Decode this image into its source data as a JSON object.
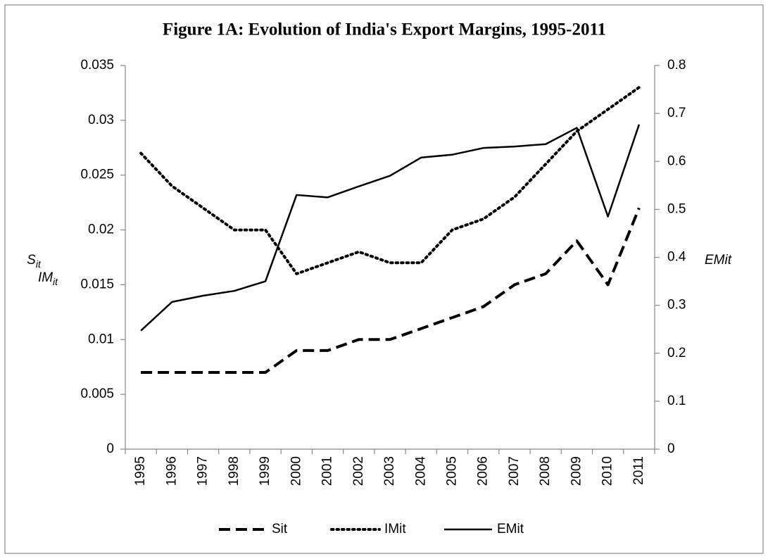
{
  "chart_data": {
    "type": "line",
    "title": "Figure 1A: Evolution of India's Export Margins, 1995-2011",
    "ylabel": [
      {
        "text": "S",
        "sub": "it"
      },
      {
        "text": "IM",
        "sub": "it"
      }
    ],
    "y2label": "EMit",
    "categories": [
      "1995",
      "1996",
      "1997",
      "1998",
      "1999",
      "2000",
      "2001",
      "2002",
      "2003",
      "2004",
      "2005",
      "2006",
      "2007",
      "2008",
      "2009",
      "2010",
      "2011"
    ],
    "series": [
      {
        "name": "Sit",
        "color": "#000000",
        "dash": "dashed",
        "values": [
          0.007,
          0.007,
          0.007,
          0.007,
          0.007,
          0.009,
          0.009,
          0.01,
          0.01,
          0.011,
          0.012,
          0.013,
          0.015,
          0.016,
          0.019,
          0.015,
          0.022
        ]
      },
      {
        "name": "IMit",
        "color": "#000000",
        "dash": "dotted",
        "values": [
          0.027,
          0.024,
          0.022,
          0.02,
          0.02,
          0.016,
          0.017,
          0.018,
          0.017,
          0.017,
          0.02,
          0.021,
          0.023,
          0.026,
          0.029,
          0.031,
          0.033
        ]
      },
      {
        "name": "EMit",
        "color": "#000000",
        "dash": "solid",
        "axis": "y2",
        "values": [
          0.247,
          0.307,
          0.32,
          0.33,
          0.35,
          0.53,
          0.525,
          0.548,
          0.57,
          0.608,
          0.614,
          0.628,
          0.631,
          0.636,
          0.67,
          0.485,
          0.677
        ]
      }
    ],
    "ylim": [
      0,
      0.035
    ],
    "yticks": [
      0,
      0.005,
      0.01,
      0.015,
      0.02,
      0.025,
      0.03,
      0.035
    ],
    "y2lim": [
      0,
      0.8
    ],
    "y2ticks": [
      0,
      0.1,
      0.2,
      0.3,
      0.4,
      0.5,
      0.6,
      0.7,
      0.8
    ],
    "legend": "bottom"
  }
}
